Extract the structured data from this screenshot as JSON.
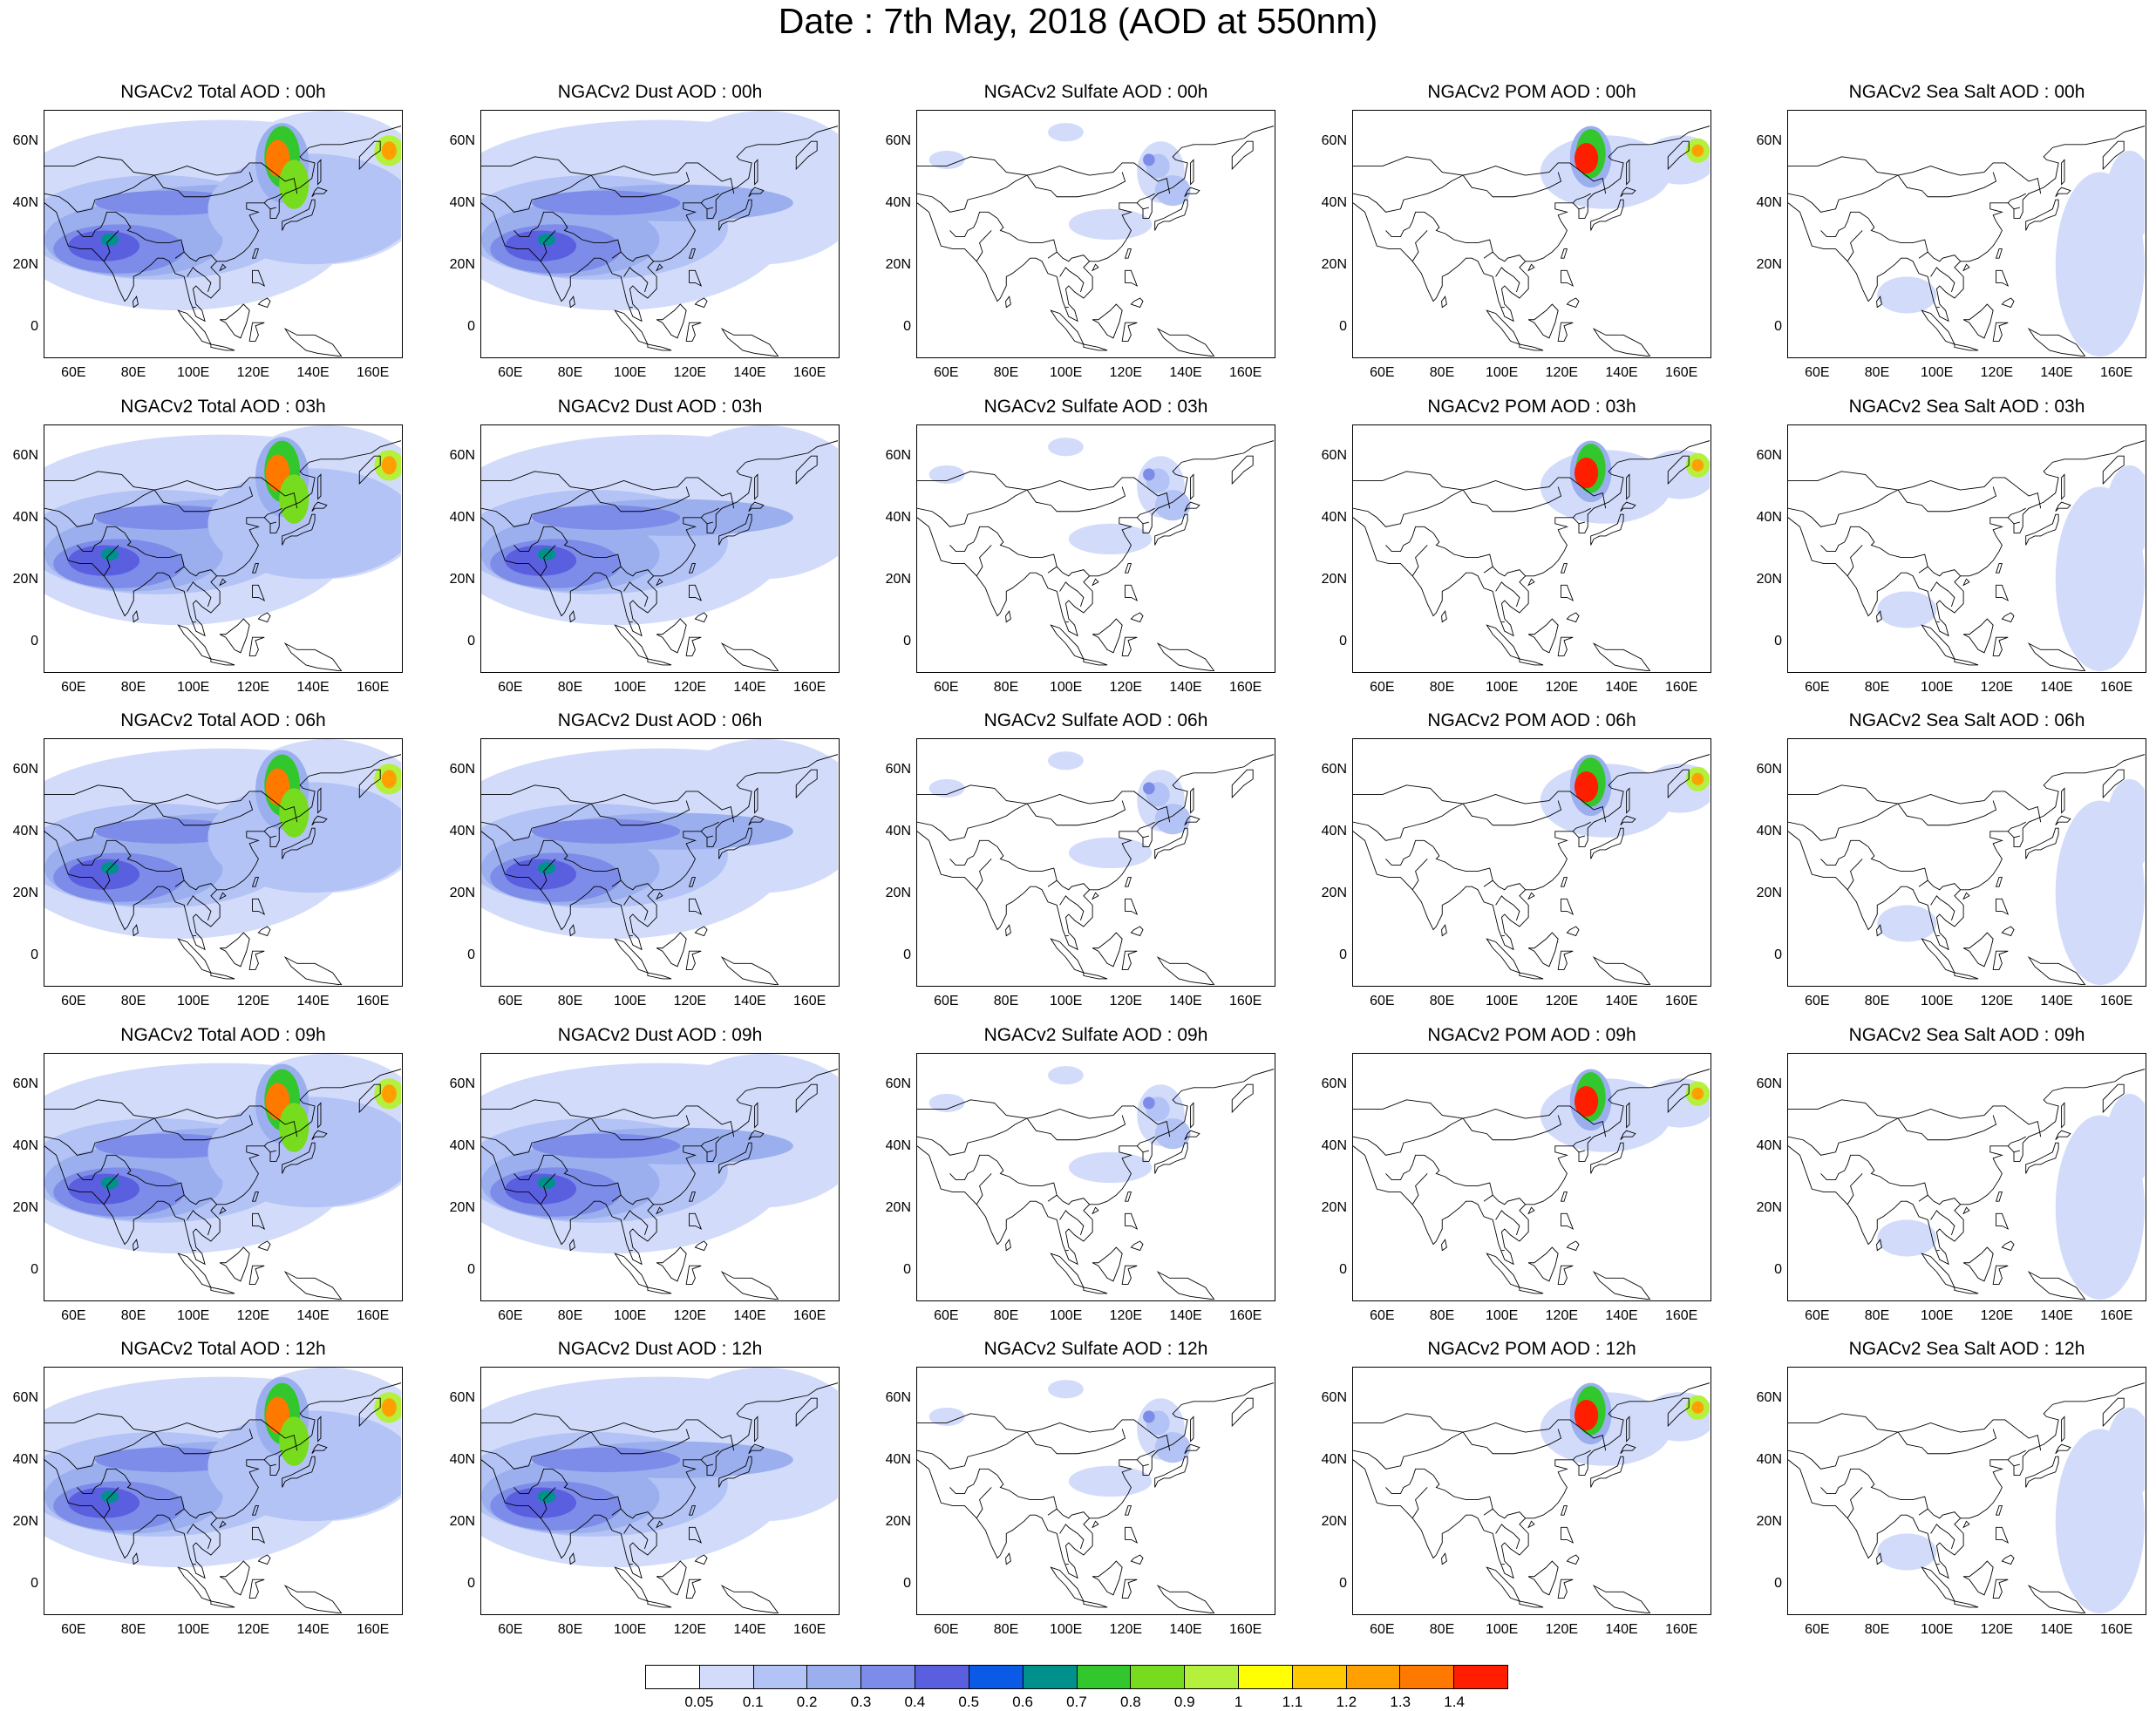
{
  "title": "Date : 7th May, 2018 (AOD at 550nm)",
  "rows": [
    "00h",
    "03h",
    "06h",
    "09h",
    "12h"
  ],
  "panel_titles": [
    [
      "NGACv2 Total AOD : 00h",
      "NGACv2 Dust AOD : 00h",
      "NGACv2 Sulfate AOD : 00h",
      "NGACv2 POM AOD : 00h",
      "NGACv2 Sea Salt AOD : 00h"
    ],
    [
      "NGACv2 Total AOD : 03h",
      "NGACv2 Dust AOD : 03h",
      "NGACv2 Sulfate AOD : 03h",
      "NGACv2 POM AOD : 03h",
      "NGACv2 Sea Salt AOD : 03h"
    ],
    [
      "NGACv2 Total AOD : 06h",
      "NGACv2 Dust AOD : 06h",
      "NGACv2 Sulfate AOD : 06h",
      "NGACv2 POM AOD : 06h",
      "NGACv2 Sea Salt AOD : 06h"
    ],
    [
      "NGACv2 Total AOD : 09h",
      "NGACv2 Dust AOD : 09h",
      "NGACv2 Sulfate AOD : 09h",
      "NGACv2 POM AOD : 09h",
      "NGACv2 Sea Salt  AOD : 09h"
    ],
    [
      "NGACv2 Total AOD  : 12h",
      "NGACv2 Dust AOD : 12h",
      "NGACv2 Sulfate AOD : 12h",
      "NGACv2 POM  AOD : 12h",
      "NGACv2 Sea Salt  AOD : 12h"
    ]
  ],
  "map_extent": {
    "lon_min": 50,
    "lon_max": 170,
    "lat_min": -10,
    "lat_max": 70
  },
  "x_ticks": [
    "60E",
    "80E",
    "100E",
    "120E",
    "140E",
    "160E"
  ],
  "x_tick_values": [
    60,
    80,
    100,
    120,
    140,
    160
  ],
  "y_ticks": [
    "60N",
    "40N",
    "20N",
    "0"
  ],
  "y_tick_values": [
    60,
    40,
    20,
    0
  ],
  "colorbar": {
    "labels": [
      "0.05",
      "0.1",
      "0.2",
      "0.3",
      "0.4",
      "0.5",
      "0.6",
      "0.7",
      "0.8",
      "0.9",
      "1",
      "1.1",
      "1.2",
      "1.3",
      "1.4"
    ],
    "colors": [
      "#ffffff",
      "#d2dcfa",
      "#b4c3f5",
      "#9bafef",
      "#7d8ce8",
      "#5a5fe0",
      "#0a5ae6",
      "#00918c",
      "#32c82d",
      "#78dc1e",
      "#b4f03c",
      "#ffff00",
      "#ffc800",
      "#ffa000",
      "#ff7800",
      "#ff1e00"
    ]
  },
  "colors": {
    "background": "#ffffff",
    "coastline": "#000000",
    "text": "#000000"
  }
}
